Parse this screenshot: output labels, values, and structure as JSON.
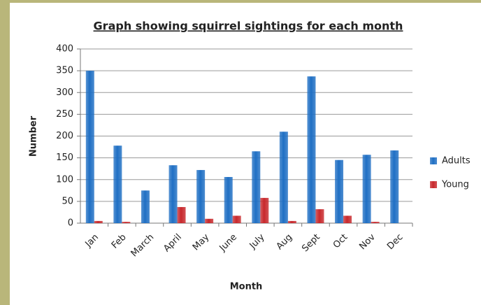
{
  "chart_data": {
    "type": "bar",
    "title": "Graph showing squirrel sightings for each month",
    "x_label": "Month",
    "y_label": "Number",
    "categories": [
      "Jan",
      "Feb",
      "March",
      "April",
      "May",
      "June",
      "July",
      "Aug",
      "Sept",
      "Oct",
      "Nov",
      "Dec"
    ],
    "series": [
      {
        "name": "Adults",
        "color": "#1f6fc4",
        "values": [
          350,
          178,
          75,
          133,
          122,
          106,
          165,
          210,
          337,
          145,
          157,
          167
        ]
      },
      {
        "name": "Young",
        "color": "#c8282c",
        "values": [
          5,
          3,
          0,
          37,
          10,
          17,
          58,
          5,
          32,
          17,
          3,
          0
        ]
      }
    ],
    "ylim": [
      0,
      400
    ],
    "yticks": [
      0,
      50,
      100,
      150,
      200,
      250,
      300,
      350,
      400
    ],
    "grid": true,
    "legend": "right"
  }
}
